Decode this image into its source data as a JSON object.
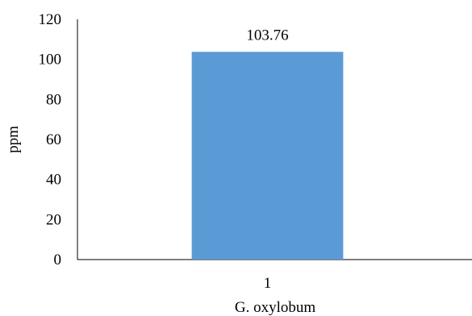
{
  "chart_data": {
    "type": "bar",
    "categories": [
      "1"
    ],
    "values": [
      103.76
    ],
    "data_labels": [
      "103.76"
    ],
    "xlabel": "G. oxylobum",
    "ylabel": "ppm",
    "ylim": [
      0,
      120
    ],
    "yticks": [
      "0",
      "20",
      "40",
      "60",
      "80",
      "100",
      "120"
    ],
    "grid": false,
    "legend": "none",
    "bar_color": "#5b9bd5",
    "axis_color": "#000000"
  }
}
